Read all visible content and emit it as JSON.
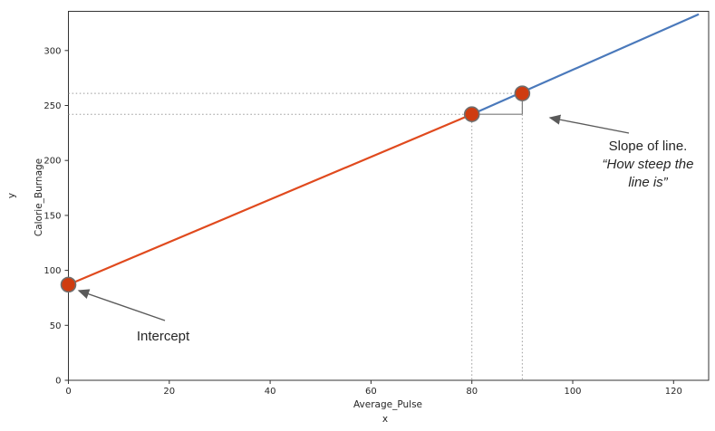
{
  "figure": {
    "background": "#ffffff"
  },
  "chart_data": {
    "type": "line",
    "title": "",
    "xlabel": "Average_Pulse",
    "xlabel_secondary": "x",
    "ylabel": "Calorie_Burnage",
    "ylabel_secondary": "y",
    "xlim": [
      0,
      127
    ],
    "ylim": [
      0,
      335
    ],
    "xticks": [
      0,
      20,
      40,
      60,
      80,
      100,
      120
    ],
    "yticks": [
      0,
      50,
      100,
      150,
      200,
      250,
      300
    ],
    "grid": false,
    "legend": false,
    "series": [
      {
        "name": "regression-line-left-segment",
        "color": "#e04a1e",
        "points": [
          [
            0,
            87
          ],
          [
            80,
            242
          ]
        ]
      },
      {
        "name": "regression-line-right-segment",
        "color": "#4a79bb",
        "points": [
          [
            80,
            242
          ],
          [
            125,
            333
          ]
        ]
      }
    ],
    "markers": {
      "name": "highlighted-points",
      "color": "#cf3c10",
      "edge_color": "#6f6f6f",
      "points": [
        [
          0,
          87
        ],
        [
          80,
          242
        ],
        [
          90,
          261
        ]
      ]
    },
    "guide_lines": {
      "color": "#9a9a9a",
      "style": "dotted",
      "horizontal_y": [
        242,
        261
      ],
      "vertical_x": [
        80,
        90
      ]
    },
    "slope_triangle": {
      "color": "#7a7a7a",
      "from_point": [
        80,
        242
      ],
      "to_point": [
        90,
        261
      ]
    },
    "annotations": {
      "intercept": {
        "text": "Intercept",
        "arrow": {
          "from": [
            182,
            354
          ],
          "to": [
            87,
            321
          ]
        }
      },
      "slope": {
        "line1": "Slope of line.",
        "line2": "“How steep the",
        "line3": "line is”",
        "arrow": {
          "from": [
            694,
            147
          ],
          "to": [
            607,
            130
          ]
        }
      }
    },
    "arrow_color": "#5a5a5a"
  }
}
